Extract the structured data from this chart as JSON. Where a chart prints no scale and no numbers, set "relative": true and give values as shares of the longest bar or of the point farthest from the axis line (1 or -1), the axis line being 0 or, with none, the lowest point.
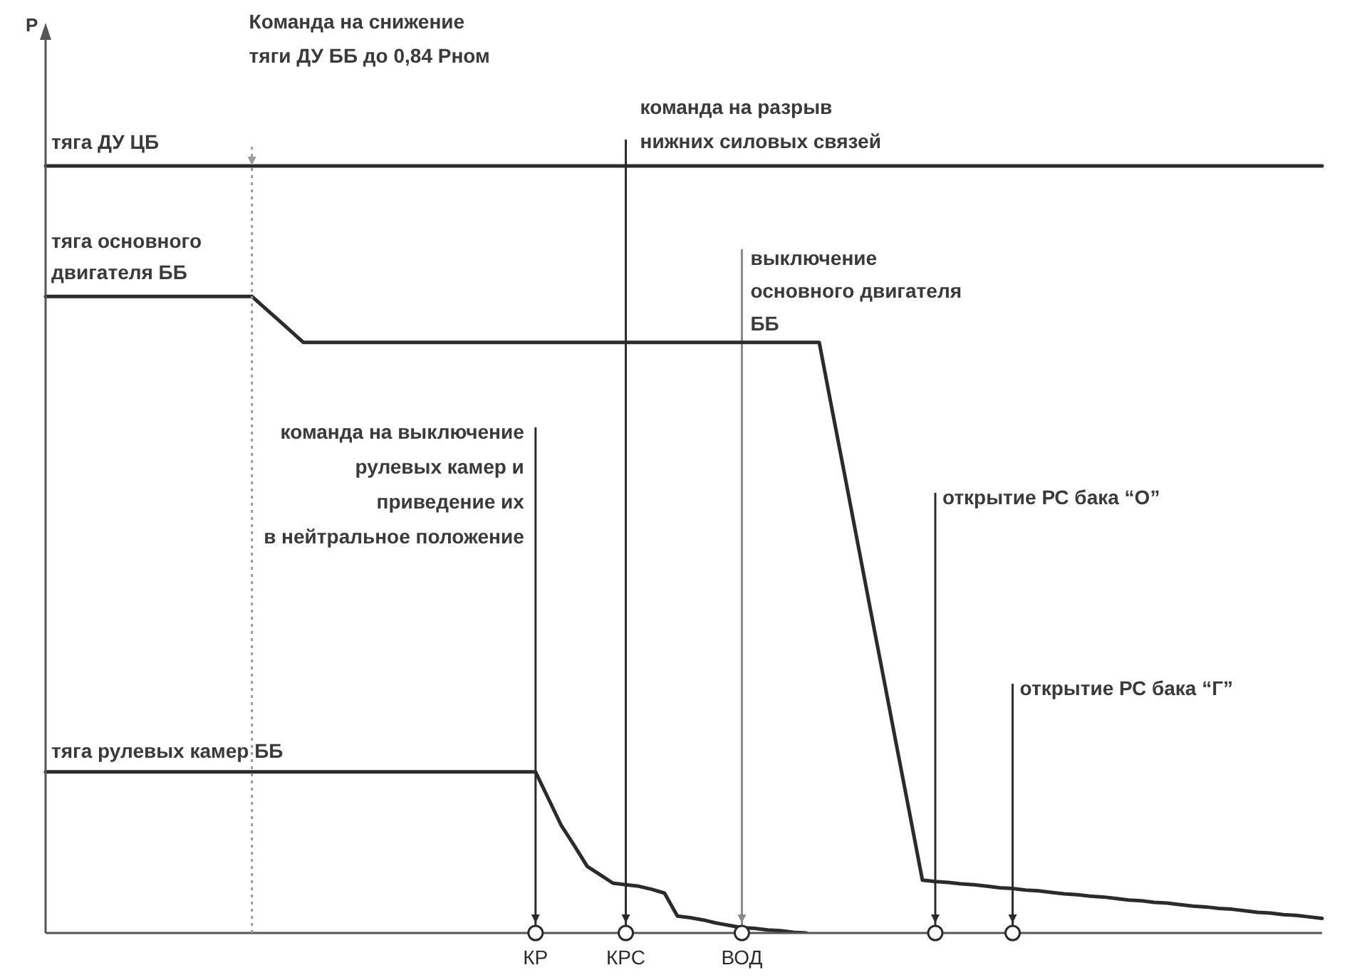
{
  "chart_data": {
    "type": "line",
    "relative": true,
    "categories": [
      null,
      null,
      null,
      null,
      null,
      null,
      null,
      null,
      null,
      null,
      null,
      null,
      null,
      null,
      null,
      null,
      null,
      null,
      null,
      null,
      null,
      null,
      null,
      null,
      null,
      null,
      null,
      null,
      null,
      null,
      null,
      null,
      null,
      null,
      null,
      null,
      null,
      null,
      "КР",
      null,
      null,
      null,
      null,
      null,
      null,
      "КРС",
      null,
      null,
      null,
      null,
      null,
      null,
      null,
      null,
      "ВОД",
      null,
      null,
      null,
      null,
      null,
      null,
      null,
      null,
      null,
      null,
      null,
      null,
      null,
      null,
      null,
      null,
      null,
      null,
      null,
      null,
      null,
      null,
      null,
      null,
      null,
      null,
      null,
      null,
      null,
      null,
      null,
      null,
      null,
      null,
      null,
      null,
      null,
      null,
      null,
      null,
      null,
      null,
      null,
      null,
      null
    ],
    "tick_labels": "x",
    "legend": false,
    "grid": false,
    "marker": "none",
    "line_style": "solid",
    "series": [
      {
        "name": "тяга ДУ ЦБ",
        "color": "#2b2b2b",
        "values": [
          1,
          1,
          1,
          1,
          1,
          1,
          1,
          1,
          1,
          1,
          1,
          1,
          1,
          1,
          1,
          1,
          1,
          1,
          1,
          1,
          1,
          1,
          1,
          1,
          1,
          1,
          1,
          1,
          1,
          1,
          1,
          1,
          1,
          1,
          1,
          1,
          1,
          1,
          1,
          1,
          1,
          1,
          1,
          1,
          1,
          1,
          1,
          1,
          1,
          1,
          1,
          1,
          1,
          1,
          1,
          1,
          1,
          1,
          1,
          1,
          1,
          1,
          1,
          1,
          1,
          1,
          1,
          1,
          1,
          1,
          1,
          1,
          1,
          1,
          1,
          1,
          1,
          1,
          1,
          1,
          1,
          1,
          1,
          1,
          1,
          1,
          1,
          1,
          1,
          1,
          1,
          1,
          1,
          1,
          1,
          1,
          1,
          1,
          1,
          1
        ]
      },
      {
        "name": "тяга основного\nдвигателя ББ",
        "color": "#2b2b2b",
        "values": [
          0.83,
          0.83,
          0.83,
          0.83,
          0.83,
          0.83,
          0.83,
          0.83,
          0.83,
          0.83,
          0.83,
          0.83,
          0.83,
          0.83,
          0.83,
          0.83,
          0.83,
          0.815,
          0.8,
          0.785,
          0.77,
          0.77,
          0.77,
          0.77,
          0.77,
          0.77,
          0.77,
          0.77,
          0.77,
          0.77,
          0.77,
          0.77,
          0.77,
          0.77,
          0.77,
          0.77,
          0.77,
          0.77,
          0.77,
          0.77,
          0.77,
          0.77,
          0.77,
          0.77,
          0.77,
          0.77,
          0.77,
          0.77,
          0.77,
          0.77,
          0.77,
          0.77,
          0.77,
          0.77,
          0.77,
          0.77,
          0.77,
          0.77,
          0.77,
          0.77,
          0.77,
          0.682,
          0.595,
          0.507,
          0.419,
          0.332,
          0.244,
          0.157,
          0.069,
          0.067,
          0.066,
          0.064,
          0.063,
          0.061,
          0.059,
          0.058,
          0.056,
          0.055,
          0.053,
          0.051,
          0.05,
          0.048,
          0.047,
          0.045,
          0.043,
          0.042,
          0.04,
          0.039,
          0.037,
          0.035,
          0.034,
          0.032,
          0.031,
          0.029,
          0.027,
          0.026,
          0.024,
          0.023,
          0.021,
          0.019
        ]
      },
      {
        "name": "тяга рулевых камер ББ",
        "color": "#2b2b2b",
        "values": [
          0.21,
          0.21,
          0.21,
          0.21,
          0.21,
          0.21,
          0.21,
          0.21,
          0.21,
          0.21,
          0.21,
          0.21,
          0.21,
          0.21,
          0.21,
          0.21,
          0.21,
          0.21,
          0.21,
          0.21,
          0.21,
          0.21,
          0.21,
          0.21,
          0.21,
          0.21,
          0.21,
          0.21,
          0.21,
          0.21,
          0.21,
          0.21,
          0.21,
          0.21,
          0.21,
          0.21,
          0.21,
          0.21,
          0.21,
          0.175,
          0.14,
          0.114,
          0.087,
          0.076,
          0.065,
          0.063,
          0.061,
          0.057,
          0.052,
          0.022,
          0.02,
          0.017,
          0.013,
          0.01,
          0.007,
          0.006,
          0.004,
          0.003,
          0.001,
          0,
          null,
          null,
          null,
          null,
          null,
          null,
          null,
          null,
          null,
          null,
          null,
          null,
          null,
          null,
          null,
          null,
          null,
          null,
          null,
          null,
          null,
          null,
          null,
          null,
          null,
          null,
          null,
          null,
          null,
          null,
          null,
          null,
          null,
          null,
          null,
          null,
          null,
          null,
          null,
          null
        ]
      }
    ],
    "ref_lines": [
      {
        "axis": "x",
        "value": "КР",
        "label": "команда на выключение\nрулевых камер и\nприведение их\nв нейтральное положение",
        "color": "#2b2b2b",
        "line_style": "solid"
      },
      {
        "axis": "x",
        "value": "КРС",
        "label": "команда на разрыв\nнижних силовых связей",
        "color": "#2b2b2b",
        "line_style": "solid"
      },
      {
        "axis": "x",
        "value": "ВОД",
        "label": "выключение\nосновного двигателя\nББ",
        "color": "#8a8a8a",
        "line_style": "solid"
      }
    ],
    "annotations": [
      "Команда на снижение\nтяги ДУ ББ до 0,84 Рном",
      "открытие РС бака “О”",
      "открытие РС бака “Г”",
      "P"
    ]
  }
}
